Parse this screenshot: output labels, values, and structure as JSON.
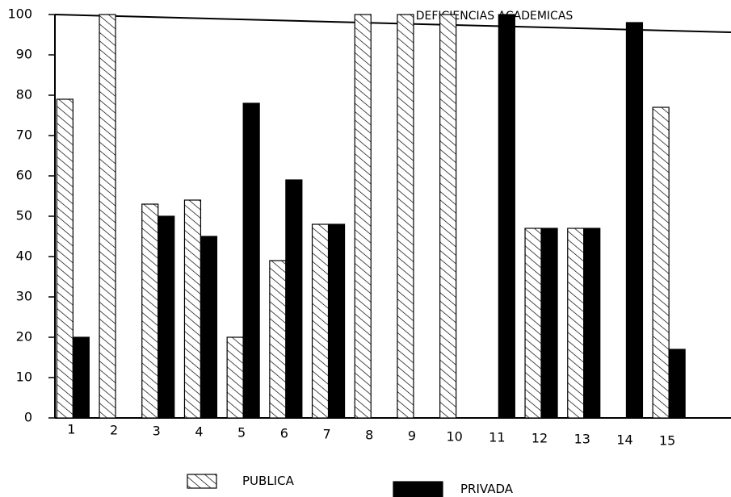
{
  "chart_data": {
    "type": "bar",
    "title": "DEFICIENCIAS ACADEMICAS",
    "categories": [
      "1",
      "2",
      "3",
      "4",
      "5",
      "6",
      "7",
      "8",
      "9",
      "10",
      "11",
      "12",
      "13",
      "14",
      "15"
    ],
    "series": [
      {
        "name": "PUBLICA",
        "color": "hatch",
        "values": [
          79,
          100,
          53,
          54,
          20,
          39,
          48,
          100,
          100,
          100,
          0,
          47,
          47,
          0,
          77
        ]
      },
      {
        "name": "PRIVADA",
        "color": "#000000",
        "values": [
          20,
          0,
          50,
          45,
          78,
          59,
          48,
          0,
          0,
          0,
          100,
          47,
          47,
          98,
          17
        ]
      }
    ],
    "ylim": [
      0,
      100
    ],
    "yticks": [
      0,
      10,
      20,
      30,
      40,
      50,
      60,
      70,
      80,
      90,
      100
    ],
    "grid": false
  }
}
